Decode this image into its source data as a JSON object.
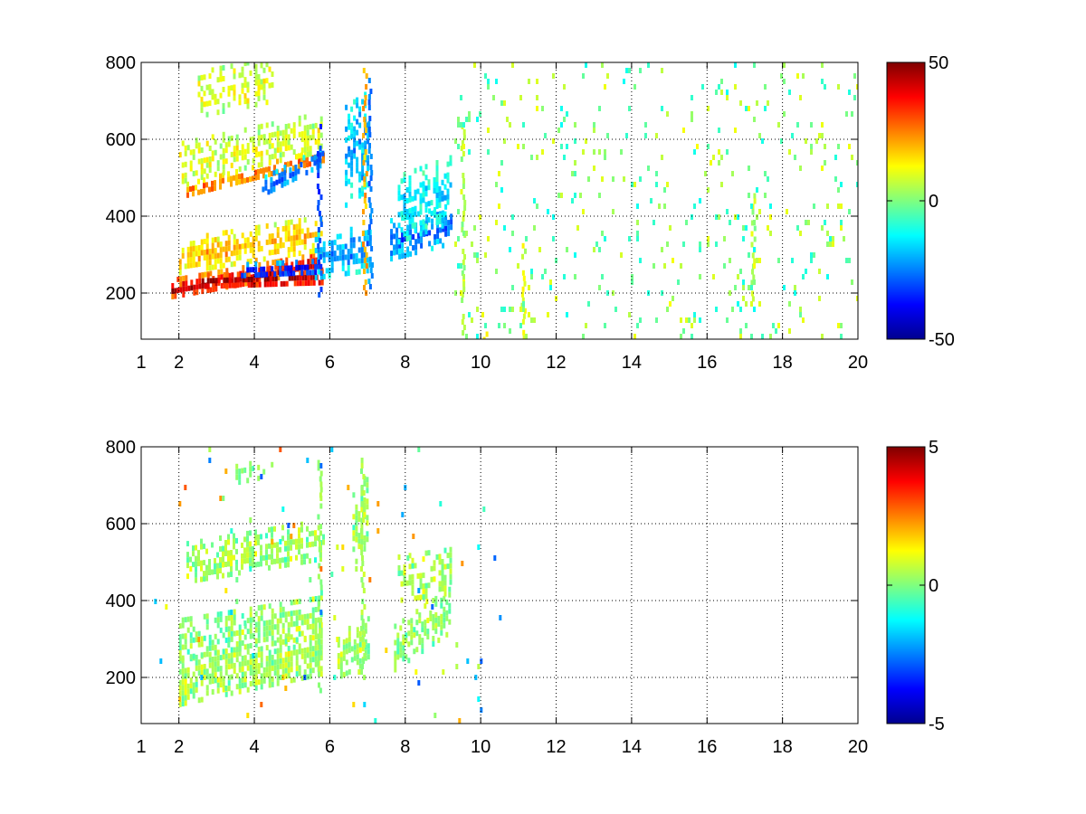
{
  "figure": {
    "background": "#ffffff"
  },
  "chart_data": [
    {
      "type": "heatmap",
      "title": "",
      "xlabel": "",
      "ylabel": "",
      "xlim": [
        1,
        20
      ],
      "ylim": [
        80,
        800
      ],
      "x_ticks": [
        1,
        2,
        4,
        6,
        8,
        10,
        12,
        14,
        16,
        18,
        20
      ],
      "y_ticks": [
        200,
        400,
        600,
        800
      ],
      "grid": true,
      "colormap": "jet",
      "color_limits": [
        -50,
        50
      ],
      "colorbar_ticks": [
        -50,
        0,
        50
      ],
      "colorbar_tick_labels": [
        "-50",
        "0",
        "50"
      ],
      "bands": [
        {
          "x": [
            1.8,
            5.8
          ],
          "y_center": [
            215,
            285
          ],
          "thickness": 50,
          "value": 45,
          "density": 0.95
        },
        {
          "x": [
            2.6,
            5.8
          ],
          "y_center": [
            235,
            245
          ],
          "thickness": 35,
          "value": 50,
          "density": 0.95
        },
        {
          "x": [
            2.0,
            5.8
          ],
          "y_center": [
            300,
            360
          ],
          "thickness": 90,
          "value": 20,
          "density": 0.75
        },
        {
          "x": [
            2.2,
            5.8
          ],
          "y_center": [
            470,
            560
          ],
          "thickness": 40,
          "value": 28,
          "density": 0.9
        },
        {
          "x": [
            2.0,
            5.8
          ],
          "y_center": [
            540,
            620
          ],
          "thickness": 110,
          "value": 10,
          "density": 0.6
        },
        {
          "x": [
            2.5,
            4.5
          ],
          "y_center": [
            720,
            760
          ],
          "thickness": 120,
          "value": 10,
          "density": 0.55
        },
        {
          "x": [
            3.5,
            5.8
          ],
          "y_center": [
            260,
            270
          ],
          "thickness": 40,
          "value": -40,
          "density": 0.85
        },
        {
          "x": [
            4.2,
            5.8
          ],
          "y_center": [
            480,
            560
          ],
          "thickness": 50,
          "value": -30,
          "density": 0.8
        },
        {
          "x": [
            5.6,
            7.1
          ],
          "y_center": [
            300,
            320
          ],
          "thickness": 120,
          "value": -25,
          "density": 0.7
        },
        {
          "x": [
            6.4,
            7.0
          ],
          "y_center": [
            560,
            600
          ],
          "thickness": 260,
          "value": -22,
          "density": 0.7
        },
        {
          "x": [
            7.6,
            9.2
          ],
          "y_center": [
            340,
            380
          ],
          "thickness": 110,
          "value": -28,
          "density": 0.75
        },
        {
          "x": [
            7.8,
            9.2
          ],
          "y_center": [
            420,
            470
          ],
          "thickness": 180,
          "value": -15,
          "density": 0.6
        }
      ],
      "vertical_streaks": [
        {
          "x": 5.7,
          "y": [
            200,
            640
          ],
          "value": -30
        },
        {
          "x": 6.9,
          "y": [
            200,
            800
          ],
          "value": 20
        },
        {
          "x": 7.05,
          "y": [
            220,
            760
          ],
          "value": -25
        },
        {
          "x": 9.5,
          "y": [
            100,
            640
          ],
          "value": 5
        },
        {
          "x": 10.1,
          "y": [
            80,
            100
          ],
          "value": 15
        },
        {
          "x": 11.1,
          "y": [
            80,
            330
          ],
          "value": 10
        },
        {
          "x": 17.2,
          "y": [
            180,
            460
          ],
          "value": 5
        }
      ],
      "sparse_background": {
        "x": [
          9.3,
          20
        ],
        "y": [
          80,
          800
        ],
        "value": [
          -12,
          12
        ],
        "density": 0.06
      }
    },
    {
      "type": "heatmap",
      "title": "",
      "xlabel": "",
      "ylabel": "",
      "xlim": [
        1,
        20
      ],
      "ylim": [
        80,
        800
      ],
      "x_ticks": [
        1,
        2,
        4,
        6,
        8,
        10,
        12,
        14,
        16,
        18,
        20
      ],
      "y_ticks": [
        200,
        400,
        600,
        800
      ],
      "grid": true,
      "colormap": "jet",
      "color_limits": [
        -5,
        5
      ],
      "colorbar_ticks": [
        -5,
        0,
        5
      ],
      "colorbar_tick_labels": [
        "-5",
        "0",
        "5"
      ],
      "bands": [
        {
          "x": [
            2.0,
            5.8
          ],
          "y_center": [
            190,
            270
          ],
          "thickness": 120,
          "value": 0.4,
          "density": 0.85
        },
        {
          "x": [
            2.0,
            5.8
          ],
          "y_center": [
            300,
            360
          ],
          "thickness": 110,
          "value": 0.2,
          "density": 0.7
        },
        {
          "x": [
            2.2,
            5.8
          ],
          "y_center": [
            500,
            560
          ],
          "thickness": 110,
          "value": 0.3,
          "density": 0.65
        },
        {
          "x": [
            3.5,
            4.5
          ],
          "y_center": [
            740,
            760
          ],
          "thickness": 60,
          "value": 0.3,
          "density": 0.4
        },
        {
          "x": [
            6.2,
            7.0
          ],
          "y_center": [
            260,
            300
          ],
          "thickness": 120,
          "value": 0.3,
          "density": 0.8
        },
        {
          "x": [
            6.6,
            7.0
          ],
          "y_center": [
            600,
            660
          ],
          "thickness": 220,
          "value": 0.2,
          "density": 0.65
        },
        {
          "x": [
            7.7,
            9.2
          ],
          "y_center": [
            280,
            380
          ],
          "thickness": 120,
          "value": 0.3,
          "density": 0.8
        },
        {
          "x": [
            7.8,
            9.2
          ],
          "y_center": [
            460,
            480
          ],
          "thickness": 120,
          "value": 0.5,
          "density": 0.55
        }
      ],
      "vertical_streaks": [
        {
          "x": 5.7,
          "y": [
            160,
            780
          ],
          "value": 0.2
        },
        {
          "x": 6.85,
          "y": [
            200,
            800
          ],
          "value": 0.3
        }
      ],
      "sparse_background": {
        "x": [
          1.2,
          10.5
        ],
        "y": [
          80,
          800
        ],
        "value": [
          -3,
          3
        ],
        "density": 0.015
      }
    }
  ]
}
